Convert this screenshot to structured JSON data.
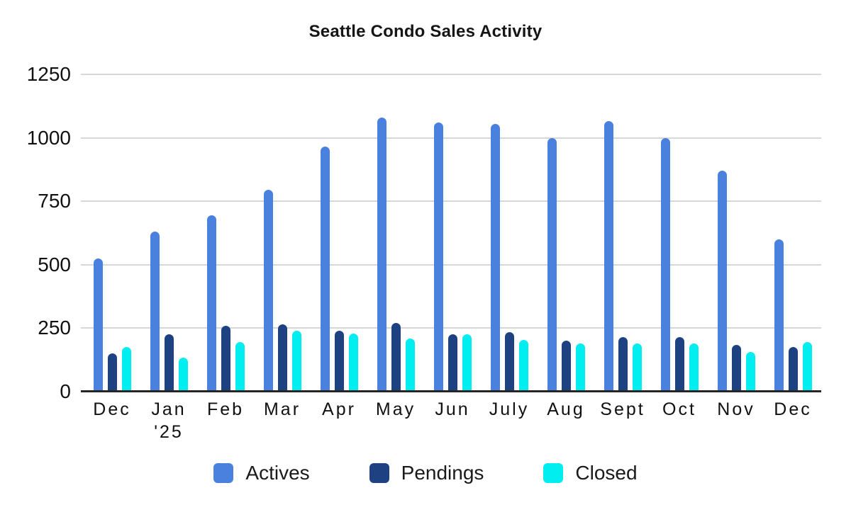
{
  "title": "Seattle Condo Sales Activity",
  "chart_data": {
    "type": "bar",
    "title": "Seattle Condo Sales Activity",
    "categories": [
      "Dec",
      "Jan '25",
      "Feb",
      "Mar",
      "Apr",
      "May",
      "Jun",
      "July",
      "Aug",
      "Sept",
      "Oct",
      "Nov",
      "Dec"
    ],
    "series": [
      {
        "name": "Actives",
        "color": "#4a80de",
        "values": [
          525,
          630,
          695,
          795,
          965,
          1080,
          1060,
          1055,
          1000,
          1065,
          1000,
          870,
          600
        ]
      },
      {
        "name": "Pendings",
        "color": "#1e4182",
        "values": [
          150,
          225,
          260,
          265,
          240,
          270,
          225,
          235,
          200,
          215,
          215,
          185,
          175
        ]
      },
      {
        "name": "Closed",
        "color": "#00eef0",
        "values": [
          175,
          135,
          195,
          240,
          230,
          210,
          225,
          205,
          190,
          190,
          190,
          155,
          195
        ]
      }
    ],
    "xlabel": "",
    "ylabel": "",
    "ylim": [
      0,
      1250
    ],
    "y_ticks": [
      0,
      250,
      500,
      750,
      1000,
      1250
    ],
    "grid": true,
    "legend_position": "bottom"
  },
  "colors": {
    "gridline": "#d7d7d7",
    "axis_line": "#262626",
    "text": "#111111"
  }
}
